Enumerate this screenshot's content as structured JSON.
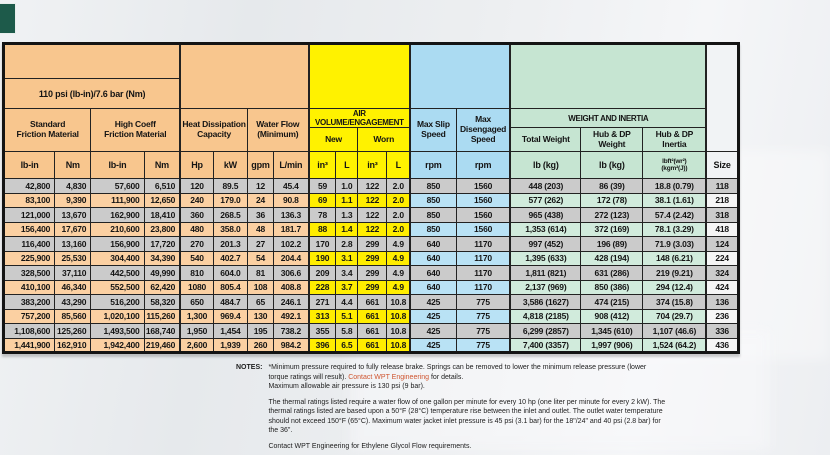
{
  "brand": {
    "logo_color": "#1d5a4a"
  },
  "colors": {
    "torque_group": "#f8c68e",
    "air_group": "#fff200",
    "speed_group": "#abdbf2",
    "weight_group": "#c6e5d2",
    "odd_row_grey": "#cbcbcb",
    "note_highlight_red": "#cf5530"
  },
  "table": {
    "headers": {
      "pressure": "110 psi (lb-in)/7.6 bar (Nm)",
      "standard_friction": "Standard\nFriction Material",
      "high_coeff_friction": "High Coeff\nFriction Material",
      "heat_dissipation": "Heat Dissipation\nCapacity",
      "water_flow": "Water Flow\n(Minimum)",
      "air_banner": "AIR VOLUME/ENGAGEMENT",
      "air_new": "New",
      "air_worn": "Worn",
      "max_slip_speed": "Max Slip\nSpeed",
      "max_disengaged_speed": "Max\nDisengaged\nSpeed",
      "weight_banner": "WEIGHT AND INERTIA",
      "total_weight": "Total Weight",
      "hub_dp_weight": "Hub & DP Weight",
      "hub_dp_inertia": "Hub & DP Inertia"
    },
    "units": [
      "lb-in",
      "Nm",
      "lb-in",
      "Nm",
      "Hp",
      "kW",
      "gpm",
      "L/min",
      "in³",
      "L",
      "in³",
      "L",
      "rpm",
      "rpm",
      "lb (kg)",
      "lb (kg)",
      "lbft²(wr²)\n(kgm²(J))",
      "Size"
    ],
    "col_groups": [
      "o",
      "o",
      "o",
      "o",
      "o",
      "o",
      "o",
      "o",
      "y",
      "y",
      "y",
      "y",
      "b",
      "b",
      "g",
      "g",
      "g",
      "s"
    ],
    "rows": [
      [
        "42,800",
        "4,830",
        "57,600",
        "6,510",
        "120",
        "89.5",
        "12",
        "45.4",
        "59",
        "1.0",
        "122",
        "2.0",
        "850",
        "1560",
        "448 (203)",
        "86 (39)",
        "18.8 (0.79)",
        "118"
      ],
      [
        "83,100",
        "9,390",
        "111,900",
        "12,650",
        "240",
        "179.0",
        "24",
        "90.8",
        "69",
        "1.1",
        "122",
        "2.0",
        "850",
        "1560",
        "577 (262)",
        "172 (78)",
        "38.1 (1.61)",
        "218"
      ],
      [
        "121,000",
        "13,670",
        "162,900",
        "18,410",
        "360",
        "268.5",
        "36",
        "136.3",
        "78",
        "1.3",
        "122",
        "2.0",
        "850",
        "1560",
        "965 (438)",
        "272 (123)",
        "57.4 (2.42)",
        "318"
      ],
      [
        "156,400",
        "17,670",
        "210,600",
        "23,800",
        "480",
        "358.0",
        "48",
        "181.7",
        "88",
        "1.4",
        "122",
        "2.0",
        "850",
        "1560",
        "1,353 (614)",
        "372 (169)",
        "78.1 (3.29)",
        "418"
      ],
      [
        "116,400",
        "13,160",
        "156,900",
        "17,720",
        "270",
        "201.3",
        "27",
        "102.2",
        "170",
        "2.8",
        "299",
        "4.9",
        "640",
        "1170",
        "997 (452)",
        "196 (89)",
        "71.9 (3.03)",
        "124"
      ],
      [
        "225,900",
        "25,530",
        "304,400",
        "34,390",
        "540",
        "402.7",
        "54",
        "204.4",
        "190",
        "3.1",
        "299",
        "4.9",
        "640",
        "1170",
        "1,395 (633)",
        "428 (194)",
        "148 (6.21)",
        "224"
      ],
      [
        "328,500",
        "37,110",
        "442,500",
        "49,990",
        "810",
        "604.0",
        "81",
        "306.6",
        "209",
        "3.4",
        "299",
        "4.9",
        "640",
        "1170",
        "1,811 (821)",
        "631 (286)",
        "219 (9.21)",
        "324"
      ],
      [
        "410,100",
        "46,340",
        "552,500",
        "62,420",
        "1080",
        "805.4",
        "108",
        "408.8",
        "228",
        "3.7",
        "299",
        "4.9",
        "640",
        "1170",
        "2,137 (969)",
        "850 (386)",
        "294 (12.4)",
        "424"
      ],
      [
        "383,200",
        "43,290",
        "516,200",
        "58,320",
        "650",
        "484.7",
        "65",
        "246.1",
        "271",
        "4.4",
        "661",
        "10.8",
        "425",
        "775",
        "3,586 (1627)",
        "474 (215)",
        "374 (15.8)",
        "136"
      ],
      [
        "757,200",
        "85,560",
        "1,020,100",
        "115,260",
        "1,300",
        "969.4",
        "130",
        "492.1",
        "313",
        "5.1",
        "661",
        "10.8",
        "425",
        "775",
        "4,818 (2185)",
        "908 (412)",
        "704 (29.7)",
        "236"
      ],
      [
        "1,108,600",
        "125,260",
        "1,493,500",
        "168,740",
        "1,950",
        "1,454",
        "195",
        "738.2",
        "355",
        "5.8",
        "661",
        "10.8",
        "425",
        "775",
        "6,299 (2857)",
        "1,345 (610)",
        "1,107 (46.6)",
        "336"
      ],
      [
        "1,441,900",
        "162,910",
        "1,942,400",
        "219,460",
        "2,600",
        "1,939",
        "260",
        "984.2",
        "396",
        "6.5",
        "661",
        "10.8",
        "425",
        "775",
        "7,400 (3357)",
        "1,997 (906)",
        "1,524 (64.2)",
        "436"
      ]
    ]
  },
  "notes": {
    "label": "NOTES:",
    "p1_pre": "*Minimum pressure required to fully release brake. Springs can be removed to lower the minimum release pressure (lower torque ratings will result). ",
    "p1_red": "Contact WPT Engineering",
    "p1_post": " for details.\nMaximum allowable air pressure is 130 psi (9 bar).",
    "p2": "The thermal ratings listed require a water flow of one gallon per minute for every 10 hp (one liter per minute for every 2 kW). The thermal ratings listed are based upon a 50°F (28°C) temperature rise between the inlet and outlet. The outlet water temperature should not exceed 150°F (65°C). Maximum water jacket inlet pressure is 45 psi (3.1 bar) for the 18\"/24\" and 40 psi (2.8 bar) for the 36\".",
    "p3": "Contact WPT Engineering for Ethylene Glycol Flow requirements."
  }
}
